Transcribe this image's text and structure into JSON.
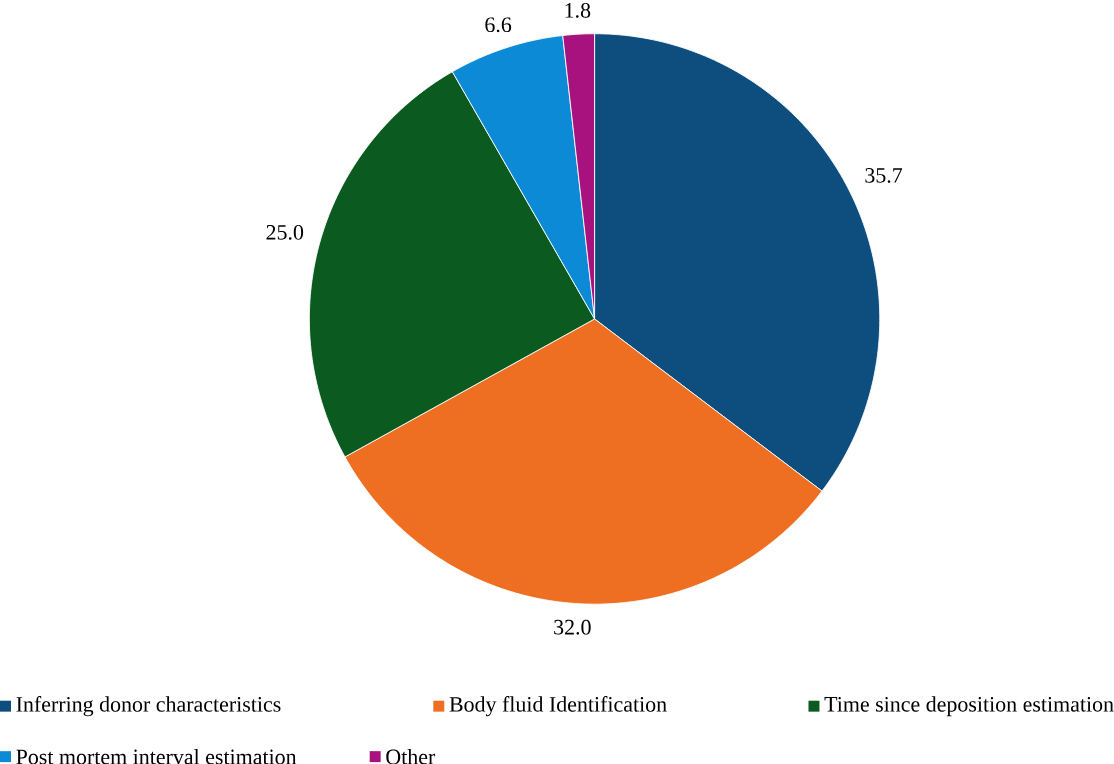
{
  "chart_data": {
    "type": "pie",
    "categories": [
      "Inferring donor characteristics",
      "Body fluid Identification",
      "Time since deposition estimation",
      "Post mortem interval estimation",
      "Other"
    ],
    "values": [
      35.7,
      32.0,
      25.0,
      6.6,
      1.8
    ],
    "colors": [
      "#0d4e7e",
      "#ef6f22",
      "#0b5a1f",
      "#0c8ad6",
      "#a8127e"
    ],
    "value_labels": [
      "35.7",
      "32.0",
      "25.0",
      "6.6",
      "1.8"
    ],
    "legend": "bottom"
  }
}
